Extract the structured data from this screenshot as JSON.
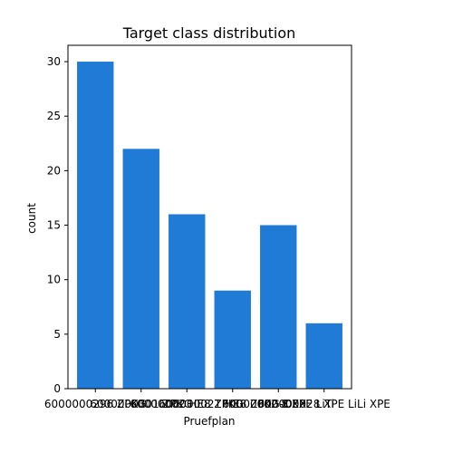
{
  "chart_data": {
    "type": "bar",
    "title": "Target class distribution",
    "xlabel": "Pruefplan",
    "ylabel": "count",
    "categories": [
      "6000000296 ZPKG",
      "6000000301 ZPKG",
      "60000002 HE8 ZPKG",
      "600000021 HE8 ZPKG-DEX",
      "60000002 8 XPE LiTi",
      "600000028 XPE LiLi XPE"
    ],
    "values": [
      30,
      22,
      16,
      9,
      15,
      6
    ],
    "yticks": [
      0,
      5,
      10,
      15,
      20,
      25,
      30
    ],
    "ylim": [
      0,
      31.5
    ],
    "bar_color": "#1f7bd6",
    "grid": false,
    "legend": "none"
  }
}
